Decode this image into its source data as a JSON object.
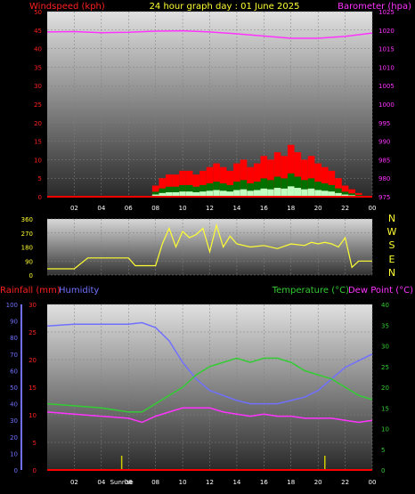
{
  "header": {
    "windspeed_label": "Windspeed (kph)",
    "title": "24 hour graph day : 01 June 2025",
    "barometer_label": "Barometer (hpa)"
  },
  "middle": {
    "compass": [
      "N",
      "W",
      "S",
      "E",
      "N"
    ]
  },
  "lower_header": {
    "rainfall_label": "Rainfall (mm)",
    "humidity_label": "Humidity",
    "temperature_label": "Temperature (°C)",
    "dewpoint_label": "Dew Point (°C)"
  },
  "colors": {
    "wind": "#ff0000",
    "wind_gust": "#ff0000",
    "wind_avg_dark": "#007000",
    "wind_avg_light": "#c0ffc0",
    "barometer": "#ff33ff",
    "direction": "#ffff33",
    "rain": "#ff0000",
    "humidity": "#7070ff",
    "temperature": "#33cc33",
    "dewpoint": "#ff33ff",
    "uv_tick": "#cccc00"
  },
  "chart_data": [
    {
      "type": "line",
      "title": "24 hour graph day : 01 June 2025",
      "x_ticks": [
        "02",
        "04",
        "06",
        "08",
        "10",
        "12",
        "14",
        "16",
        "18",
        "20",
        "22",
        "00"
      ],
      "y_left_label": "Windspeed (kph)",
      "y_left_ticks": [
        0,
        5,
        10,
        15,
        20,
        25,
        30,
        35,
        40,
        45,
        50
      ],
      "ylim_left": [
        0,
        50
      ],
      "y_right_label": "Barometer (hpa)",
      "y_right_ticks": [
        975,
        980,
        985,
        990,
        995,
        1000,
        1005,
        1010,
        1015,
        1020,
        1025
      ],
      "ylim_right": [
        975,
        1025
      ],
      "series": [
        {
          "name": "Windspeed (kph)",
          "axis": "left",
          "x": [
            0,
            0.5,
            1,
            1.5,
            2,
            2.5,
            3,
            3.5,
            4,
            4.5,
            5,
            5.5,
            6,
            6.5,
            7,
            7.5,
            8,
            8.5,
            9,
            9.5,
            10,
            10.5,
            11,
            11.5,
            12,
            12.5,
            13,
            13.5,
            14,
            14.5,
            15,
            15.5,
            16,
            16.5,
            17,
            17.5,
            18,
            18.5,
            19,
            19.5,
            20,
            20.5,
            21,
            21.5,
            22,
            22.5,
            23,
            23.5,
            24
          ],
          "values": [
            0,
            0,
            0,
            0,
            0,
            0,
            0,
            0,
            0,
            0,
            0,
            0,
            0,
            0,
            0,
            0,
            3,
            5,
            6,
            6,
            7,
            7,
            6,
            7,
            8,
            9,
            8,
            7,
            9,
            10,
            8,
            9,
            11,
            10,
            12,
            11,
            14,
            12,
            10,
            11,
            9,
            8,
            7,
            5,
            3,
            2,
            1,
            0,
            0
          ]
        },
        {
          "name": "Barometer (hpa)",
          "axis": "right",
          "x": [
            0,
            2,
            4,
            6,
            8,
            10,
            12,
            14,
            16,
            18,
            20,
            22,
            24
          ],
          "values": [
            1019.5,
            1019.6,
            1019.3,
            1019.4,
            1019.7,
            1019.8,
            1019.5,
            1019.0,
            1018.4,
            1017.8,
            1017.8,
            1018.3,
            1019.2
          ]
        }
      ]
    },
    {
      "type": "scatter",
      "x_ticks": [],
      "y_ticks": [
        0,
        90,
        180,
        270,
        360
      ],
      "ylim": [
        0,
        360
      ],
      "series": [
        {
          "name": "Wind direction",
          "x": [
            0,
            1,
            2,
            3,
            3.5,
            4,
            5,
            6,
            6.5,
            7,
            8,
            8.5,
            9,
            9.5,
            10,
            10.5,
            11,
            11.5,
            12,
            12.5,
            13,
            13.5,
            14,
            15,
            16,
            17,
            18,
            19,
            19.5,
            20,
            20.5,
            21,
            21.5,
            22,
            22.5,
            23,
            24
          ],
          "values": [
            40,
            40,
            40,
            110,
            110,
            110,
            110,
            110,
            60,
            60,
            60,
            200,
            300,
            180,
            280,
            240,
            260,
            300,
            150,
            320,
            180,
            250,
            200,
            180,
            190,
            170,
            200,
            190,
            210,
            200,
            210,
            200,
            180,
            240,
            50,
            90,
            90
          ]
        }
      ]
    },
    {
      "type": "line",
      "x_ticks": [
        "02",
        "04",
        "Sunrise",
        "06",
        "08",
        "10",
        "12",
        "14",
        "16",
        "18",
        "20",
        "22",
        "00"
      ],
      "y_left_outer_label": "Humidity",
      "y_left_outer_ticks": [
        0,
        10,
        20,
        30,
        40,
        50,
        60,
        70,
        80,
        90,
        100
      ],
      "ylim_left_outer": [
        0,
        100
      ],
      "y_left_inner_label": "Rainfall (mm)",
      "y_left_inner_ticks": [
        0,
        5,
        10,
        15,
        20,
        25,
        30
      ],
      "ylim_left_inner": [
        0,
        30
      ],
      "y_right_label": "Temperature (°C)",
      "y_right_ticks": [
        0,
        5,
        10,
        15,
        20,
        25,
        30,
        35,
        40
      ],
      "ylim_right": [
        0,
        40
      ],
      "series": [
        {
          "name": "Humidity",
          "axis": "left_outer",
          "x": [
            0,
            2,
            4,
            6,
            7,
            8,
            9,
            10,
            11,
            12,
            13,
            14,
            15,
            16,
            17,
            18,
            19,
            20,
            21,
            22,
            23,
            24
          ],
          "values": [
            87,
            88,
            88,
            88,
            89,
            86,
            78,
            65,
            55,
            48,
            45,
            42,
            40,
            40,
            40,
            42,
            44,
            48,
            55,
            62,
            66,
            70
          ]
        },
        {
          "name": "Rainfall (mm)",
          "axis": "left_inner",
          "x": [
            0,
            24
          ],
          "values": [
            0,
            0
          ]
        },
        {
          "name": "Temperature (°C)",
          "axis": "right",
          "x": [
            0,
            2,
            4,
            6,
            7,
            8,
            9,
            10,
            11,
            12,
            13,
            14,
            15,
            16,
            17,
            18,
            19,
            20,
            21,
            22,
            23,
            24
          ],
          "values": [
            16,
            15.5,
            15,
            14,
            14,
            16,
            18,
            20,
            23,
            25,
            26,
            27,
            26,
            27,
            27,
            26,
            24,
            23,
            22,
            20,
            18,
            17
          ]
        },
        {
          "name": "Dew Point (°C)",
          "axis": "right",
          "x": [
            0,
            2,
            4,
            6,
            7,
            8,
            9,
            10,
            11,
            12,
            13,
            14,
            15,
            16,
            17,
            18,
            19,
            20,
            21,
            22,
            23,
            24
          ],
          "values": [
            14,
            13.5,
            13,
            12.5,
            11.5,
            13,
            14,
            15,
            15,
            15,
            14,
            13.5,
            13,
            13.5,
            13,
            13,
            12.5,
            12.5,
            12.5,
            12,
            11.5,
            12
          ]
        }
      ]
    }
  ]
}
